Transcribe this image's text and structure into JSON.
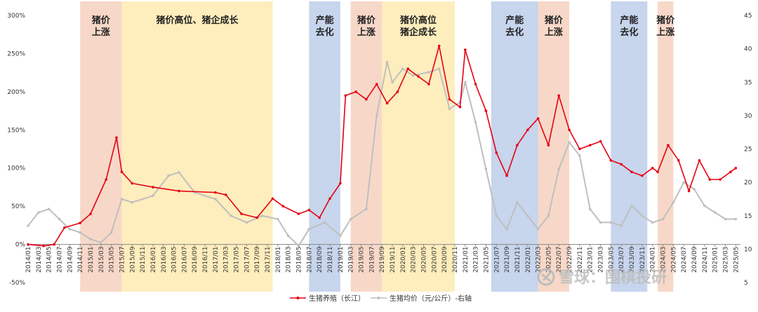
{
  "chart_data": {
    "type": "line",
    "title": "",
    "xlabel": "",
    "ylabel": "",
    "ylim": [
      -0.5,
      3.0
    ],
    "y2lim": [
      5,
      45
    ],
    "y_ticks": [
      "300%",
      "250%",
      "200%",
      "150%",
      "100%",
      "50%",
      "0%",
      "-50%"
    ],
    "y2_ticks": [
      "45",
      "40",
      "35",
      "30",
      "25",
      "20",
      "15",
      "10",
      "5"
    ],
    "x_ticks": [
      "2014/01",
      "2014/03",
      "2014/05",
      "2014/07",
      "2014/09",
      "2014/11",
      "2015/01",
      "2015/03",
      "2015/05",
      "2015/07",
      "2015/09",
      "2015/11",
      "2016/01",
      "2016/03",
      "2016/05",
      "2016/07",
      "2016/09",
      "2016/11",
      "2017/01",
      "2017/03",
      "2017/05",
      "2017/07",
      "2017/09",
      "2017/11",
      "2018/01",
      "2018/03",
      "2018/05",
      "2018/07",
      "2018/09",
      "2018/11",
      "2019/01",
      "2019/03",
      "2019/05",
      "2019/07",
      "2019/09",
      "2019/11",
      "2020/01",
      "2020/03",
      "2020/05",
      "2020/07",
      "2020/09",
      "2020/11",
      "2021/01",
      "2021/03",
      "2021/05",
      "2021/07",
      "2021/09",
      "2021/11",
      "2022/01",
      "2022/03",
      "2022/05",
      "2022/07",
      "2022/09",
      "2022/11",
      "2023/01",
      "2023/03",
      "2023/05",
      "2023/07",
      "2023/09",
      "2023/11",
      "2024/01",
      "2024/03",
      "2024/05",
      "2024/07",
      "2024/09",
      "2024/11",
      "2025/01",
      "2025/03",
      "2025/05"
    ],
    "series": [
      {
        "name": "生猪养殖（长江）",
        "axis": "left",
        "color": "#e60012",
        "x": [
          "2014/01",
          "2014/04",
          "2014/06",
          "2014/08",
          "2014/11",
          "2015/01",
          "2015/04",
          "2015/06",
          "2015/07",
          "2015/09",
          "2016/01",
          "2016/06",
          "2017/01",
          "2017/03",
          "2017/06",
          "2017/09",
          "2017/12",
          "2018/02",
          "2018/05",
          "2018/07",
          "2018/09",
          "2018/11",
          "2019/01",
          "2019/02",
          "2019/04",
          "2019/06",
          "2019/08",
          "2019/10",
          "2019/12",
          "2020/02",
          "2020/04",
          "2020/06",
          "2020/08",
          "2020/10",
          "2020/12",
          "2021/01",
          "2021/03",
          "2021/05",
          "2021/07",
          "2021/09",
          "2021/11",
          "2022/01",
          "2022/03",
          "2022/05",
          "2022/07",
          "2022/09",
          "2022/11",
          "2023/01",
          "2023/03",
          "2023/05",
          "2023/07",
          "2023/09",
          "2023/11",
          "2024/01",
          "2024/02",
          "2024/04",
          "2024/06",
          "2024/08",
          "2024/10",
          "2024/12",
          "2025/02",
          "2025/04",
          "2025/05"
        ],
        "values": [
          0.0,
          -0.02,
          0.0,
          0.22,
          0.28,
          0.4,
          0.85,
          1.4,
          0.95,
          0.8,
          0.75,
          0.7,
          0.68,
          0.65,
          0.4,
          0.35,
          0.6,
          0.5,
          0.4,
          0.45,
          0.35,
          0.6,
          0.8,
          1.95,
          2.0,
          1.9,
          2.1,
          1.85,
          2.0,
          2.3,
          2.2,
          2.1,
          2.6,
          1.9,
          1.8,
          2.55,
          2.1,
          1.75,
          1.2,
          0.9,
          1.3,
          1.5,
          1.65,
          1.3,
          1.95,
          1.5,
          1.25,
          1.3,
          1.35,
          1.1,
          1.05,
          0.95,
          0.9,
          1.0,
          0.95,
          1.3,
          1.1,
          0.7,
          1.1,
          0.85,
          0.85,
          0.95,
          1.0
        ]
      },
      {
        "name": "生猪均价（元/公斤）-右轴",
        "axis": "right",
        "color": "#bfbfbf",
        "x": [
          "2014/01",
          "2014/03",
          "2014/05",
          "2014/07",
          "2014/09",
          "2014/11",
          "2015/01",
          "2015/03",
          "2015/05",
          "2015/07",
          "2015/09",
          "2016/01",
          "2016/04",
          "2016/06",
          "2016/09",
          "2017/01",
          "2017/04",
          "2017/07",
          "2017/10",
          "2018/01",
          "2018/03",
          "2018/05",
          "2018/07",
          "2018/10",
          "2019/01",
          "2019/03",
          "2019/06",
          "2019/08",
          "2019/10",
          "2019/11",
          "2020/01",
          "2020/03",
          "2020/06",
          "2020/08",
          "2020/10",
          "2020/12",
          "2021/01",
          "2021/03",
          "2021/05",
          "2021/07",
          "2021/09",
          "2021/11",
          "2022/01",
          "2022/03",
          "2022/05",
          "2022/07",
          "2022/09",
          "2022/11",
          "2023/01",
          "2023/03",
          "2023/05",
          "2023/07",
          "2023/09",
          "2023/11",
          "2024/01",
          "2024/03",
          "2024/05",
          "2024/07",
          "2024/09",
          "2024/11",
          "2025/01",
          "2025/03",
          "2025/05"
        ],
        "values": [
          13.5,
          15.5,
          16.0,
          14.5,
          13.0,
          12.5,
          11.5,
          11.0,
          12.5,
          17.5,
          17.0,
          18.0,
          21.0,
          21.5,
          18.5,
          17.5,
          15.0,
          14.0,
          15.0,
          14.5,
          12.0,
          10.5,
          13.0,
          14.0,
          12.0,
          14.5,
          16.0,
          30.0,
          38.0,
          35.0,
          37.0,
          36.0,
          36.5,
          37.0,
          31.0,
          32.0,
          35.0,
          29.0,
          22.0,
          15.0,
          13.0,
          17.0,
          15.0,
          13.0,
          15.0,
          22.0,
          26.0,
          24.0,
          16.0,
          14.0,
          14.0,
          13.5,
          16.5,
          15.0,
          14.0,
          14.5,
          17.0,
          20.0,
          19.0,
          16.5,
          15.5,
          14.5,
          14.5
        ]
      }
    ],
    "bands": [
      {
        "start": "2014/11",
        "end": "2015/07",
        "color": "#f4cbb5",
        "label": [
          "猪价",
          "上涨"
        ]
      },
      {
        "start": "2015/07",
        "end": "2017/12",
        "color": "#fde7a7",
        "label": [
          "猪价高位、猪企成长"
        ]
      },
      {
        "start": "2018/07",
        "end": "2019/01",
        "color": "#b4c7e7",
        "label": [
          "产能",
          "去化"
        ]
      },
      {
        "start": "2019/03",
        "end": "2019/09",
        "color": "#f4cbb5",
        "label": [
          "猪价",
          "上涨"
        ]
      },
      {
        "start": "2019/09",
        "end": "2020/11",
        "color": "#fde7a7",
        "label": [
          "猪价高位",
          "猪企成长"
        ]
      },
      {
        "start": "2021/06",
        "end": "2022/03",
        "color": "#b4c7e7",
        "label": [
          "产能",
          "去化"
        ]
      },
      {
        "start": "2022/03",
        "end": "2022/09",
        "color": "#f4cbb5",
        "label": [
          "猪价",
          "上涨"
        ]
      },
      {
        "start": "2023/05",
        "end": "2023/12",
        "color": "#b4c7e7",
        "label": [
          "产能",
          "去化"
        ]
      },
      {
        "start": "2024/02",
        "end": "2024/05",
        "color": "#f4cbb5",
        "label": [
          "猪价",
          "上涨"
        ]
      }
    ],
    "legend": {
      "placement": "bottom"
    }
  },
  "watermark": {
    "icon": "snowball-icon",
    "text": "雪球：围棋投研"
  }
}
